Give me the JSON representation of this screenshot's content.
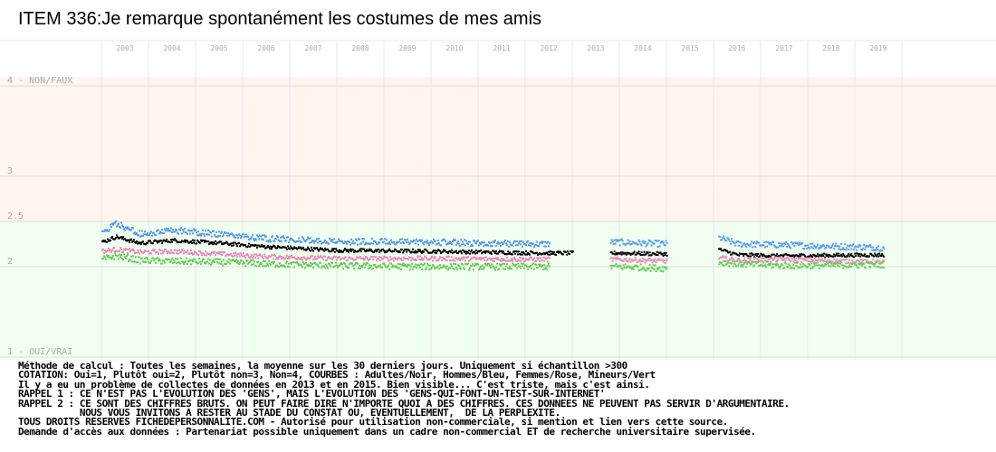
{
  "title": "ITEM 336:Je remarque spontanément les costumes de mes amis",
  "chart_data": {
    "type": "scatter",
    "title": "ITEM 336:Je remarque spontanément les costumes de mes amis",
    "x_tick_labels": [
      "2003",
      "2004",
      "2005",
      "2006",
      "2007",
      "2008",
      "2009",
      "2010",
      "2011",
      "2012",
      "2013",
      "2014",
      "2015",
      "2016",
      "2017",
      "2018",
      "2019"
    ],
    "y_tick_labels": [
      {
        "value": 4,
        "label": "4 - NON/FAUX"
      },
      {
        "value": 3,
        "label": "3"
      },
      {
        "value": 2.5,
        "label": "2.5"
      },
      {
        "value": 2,
        "label": "2"
      },
      {
        "value": 1,
        "label": "1 - OUI/VRAI"
      }
    ],
    "ylim": [
      1,
      4
    ],
    "xlim": [
      2002,
      2020
    ],
    "grid": true,
    "series": [
      {
        "name": "Hommes",
        "color": "#5599ee",
        "offset": 0.11,
        "knots": [
          [
            2003.0,
            2.38
          ],
          [
            2003.3,
            2.48
          ],
          [
            2003.8,
            2.36
          ],
          [
            2004.5,
            2.4
          ],
          [
            2005.5,
            2.36
          ],
          [
            2006.5,
            2.31
          ],
          [
            2008.0,
            2.28
          ],
          [
            2010.0,
            2.27
          ],
          [
            2012.3,
            2.25
          ],
          [
            2014.0,
            2.27
          ],
          [
            2015.0,
            2.25
          ],
          [
            2016.1,
            2.32
          ],
          [
            2016.5,
            2.25
          ],
          [
            2017.5,
            2.24
          ],
          [
            2019.5,
            2.21
          ]
        ]
      },
      {
        "name": "Adultes",
        "color": "#000000",
        "offset": 0.0,
        "knots": [
          [
            2003.0,
            2.27
          ],
          [
            2003.3,
            2.33
          ],
          [
            2003.8,
            2.26
          ],
          [
            2004.5,
            2.29
          ],
          [
            2005.5,
            2.26
          ],
          [
            2006.5,
            2.22
          ],
          [
            2008.0,
            2.18
          ],
          [
            2010.0,
            2.17
          ],
          [
            2012.3,
            2.15
          ],
          [
            2014.0,
            2.15
          ],
          [
            2015.0,
            2.14
          ],
          [
            2016.1,
            2.19
          ],
          [
            2016.5,
            2.13
          ],
          [
            2017.5,
            2.12
          ],
          [
            2019.5,
            2.13
          ]
        ]
      },
      {
        "name": "Femmes",
        "color": "#ee88bb",
        "offset": -0.11,
        "knots": [
          [
            2003.0,
            2.17
          ],
          [
            2003.3,
            2.19
          ],
          [
            2003.8,
            2.16
          ],
          [
            2004.5,
            2.17
          ],
          [
            2005.5,
            2.14
          ],
          [
            2006.5,
            2.11
          ],
          [
            2008.0,
            2.09
          ],
          [
            2010.0,
            2.09
          ],
          [
            2012.3,
            2.08
          ],
          [
            2014.0,
            2.08
          ],
          [
            2015.0,
            2.06
          ],
          [
            2016.1,
            2.1
          ],
          [
            2016.5,
            2.07
          ],
          [
            2017.5,
            2.08
          ],
          [
            2019.5,
            2.05
          ]
        ]
      },
      {
        "name": "Mineurs",
        "color": "#66cc55",
        "offset": -0.17,
        "knots": [
          [
            2003.0,
            2.08
          ],
          [
            2003.3,
            2.12
          ],
          [
            2003.8,
            2.07
          ],
          [
            2004.5,
            2.06
          ],
          [
            2005.5,
            2.05
          ],
          [
            2006.5,
            2.03
          ],
          [
            2008.0,
            2.01
          ],
          [
            2010.0,
            2.0
          ],
          [
            2012.3,
            2.0
          ],
          [
            2014.0,
            2.0
          ],
          [
            2015.0,
            1.98
          ],
          [
            2016.1,
            2.05
          ],
          [
            2016.5,
            2.03
          ],
          [
            2017.5,
            2.01
          ],
          [
            2019.5,
            2.02
          ]
        ]
      }
    ],
    "x_segments": [
      [
        2003.0,
        2012.5
      ],
      [
        2012.5,
        2013.0,
        "Adultes"
      ],
      [
        2013.8,
        2015.0
      ],
      [
        2016.1,
        2019.6
      ]
    ],
    "zones": [
      {
        "from": 2.5,
        "to": 4.1,
        "color": "#fff4ee"
      },
      {
        "from": 0.9,
        "to": 2.5,
        "color": "#f0fff0"
      }
    ]
  },
  "notes": [
    "Méthode de calcul : Toutes les semaines, la moyenne sur les 30 derniers jours. Uniquement si échantillon >300",
    "COTATION: Oui=1, Plutôt oui=2, Plutôt non=3, Non=4, COURBES : Adultes/Noir, Hommes/Bleu, Femmes/Rose, Mineurs/Vert",
    "Il y a eu un problème de collectes de données en 2013 et en 2015. Bien visible... C'est triste, mais c'est ainsi.",
    "RAPPEL 1 : CE N'EST PAS L'EVOLUTION DES 'GENS', MAIS L'EVOLUTION DES 'GENS-QUI-FONT-UN-TEST-SUR-INTERNET'",
    "RAPPEL 2 : CE SONT DES CHIFFRES BRUTS. ON PEUT FAIRE DIRE N'IMPORTE QUOI A DES CHIFFRES. CES DONNEES NE PEUVENT PAS SERVIR D'ARGUMENTAIRE.",
    "           NOUS VOUS INVITONS A RESTER AU STADE DU CONSTAT OU, EVENTUELLEMENT,  DE LA PERPLEXITE.",
    "TOUS DROITS RESERVES FICHEDEPERSONNALITE.COM - Autorisé pour utilisation non-commerciale, si mention et lien vers cette source.",
    "Demande d'accès aux données : Partenariat possible uniquement dans un cadre non-commercial ET de recherche universitaire supervisée."
  ]
}
